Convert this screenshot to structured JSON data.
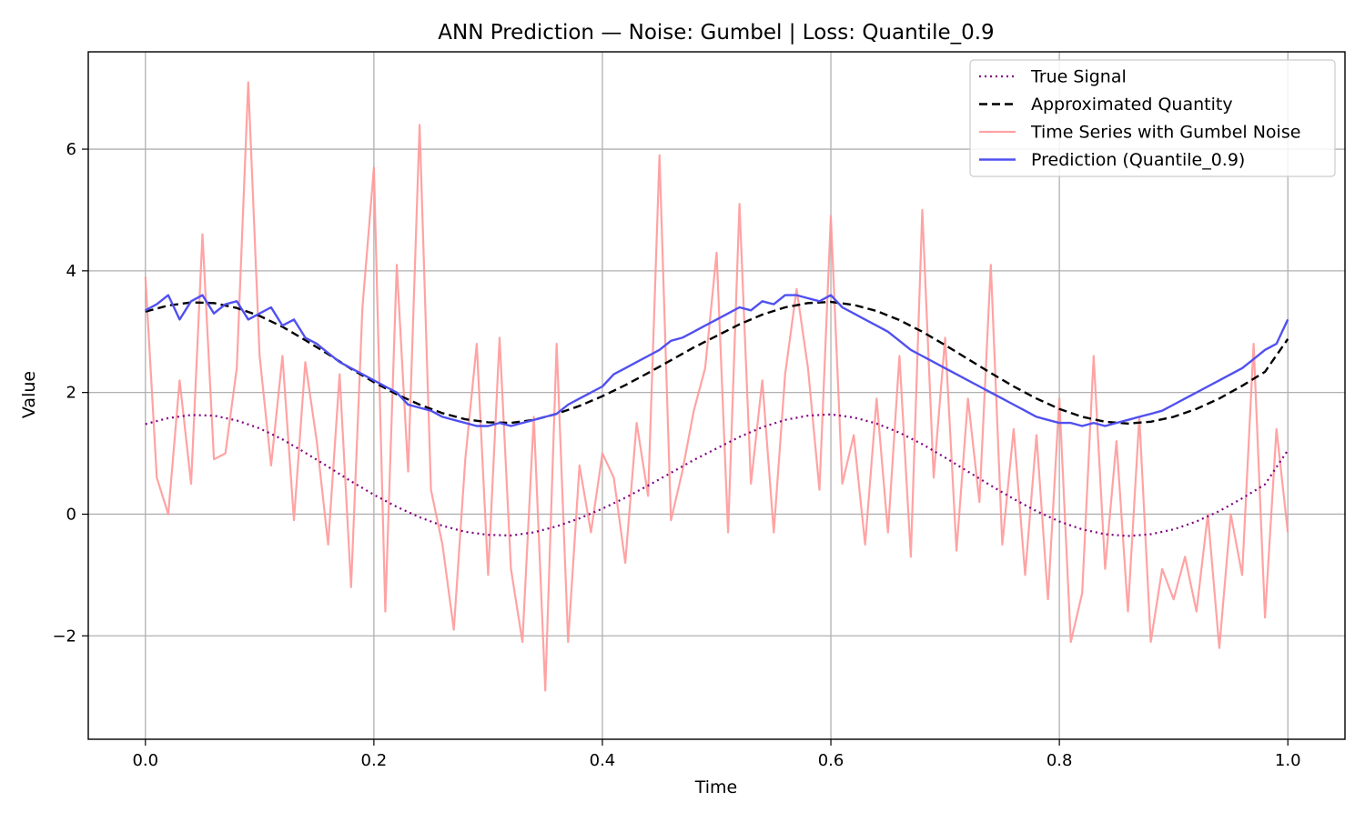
{
  "chart_data": {
    "type": "line",
    "title": "ANN Prediction — Noise: Gumbel | Loss: Quantile_0.9",
    "xlabel": "Time",
    "ylabel": "Value",
    "xlim": [
      -0.05,
      1.05
    ],
    "ylim": [
      -3.7,
      7.6
    ],
    "x_ticks": [
      0.0,
      0.2,
      0.4,
      0.6,
      0.8,
      1.0
    ],
    "x_tick_labels": [
      "0.0",
      "0.2",
      "0.4",
      "0.6",
      "0.8",
      "1.0"
    ],
    "y_ticks": [
      -2,
      0,
      2,
      4,
      6
    ],
    "y_tick_labels": [
      "−2",
      "0",
      "2",
      "4",
      "6"
    ],
    "grid": true,
    "legend_position": "top-right",
    "series": [
      {
        "name": "True Signal",
        "color": "#800080",
        "style": "dotted",
        "x": [
          0.0,
          0.02,
          0.04,
          0.06,
          0.08,
          0.1,
          0.12,
          0.14,
          0.16,
          0.18,
          0.2,
          0.22,
          0.24,
          0.26,
          0.28,
          0.3,
          0.32,
          0.34,
          0.36,
          0.38,
          0.4,
          0.42,
          0.44,
          0.46,
          0.48,
          0.5,
          0.52,
          0.54,
          0.56,
          0.58,
          0.6,
          0.62,
          0.64,
          0.66,
          0.68,
          0.7,
          0.72,
          0.74,
          0.76,
          0.78,
          0.8,
          0.82,
          0.84,
          0.86,
          0.88,
          0.9,
          0.92,
          0.94,
          0.96,
          0.98,
          1.0
        ],
        "y": [
          1.48,
          1.58,
          1.63,
          1.62,
          1.54,
          1.41,
          1.23,
          1.01,
          0.78,
          0.54,
          0.32,
          0.12,
          -0.05,
          -0.19,
          -0.29,
          -0.34,
          -0.35,
          -0.3,
          -0.2,
          -0.07,
          0.09,
          0.27,
          0.47,
          0.68,
          0.89,
          1.08,
          1.27,
          1.43,
          1.55,
          1.62,
          1.64,
          1.59,
          1.49,
          1.34,
          1.15,
          0.93,
          0.7,
          0.47,
          0.25,
          0.05,
          -0.12,
          -0.25,
          -0.33,
          -0.36,
          -0.33,
          -0.25,
          -0.12,
          0.05,
          0.26,
          0.49,
          1.05
        ]
      },
      {
        "name": "Approximated Quantity",
        "color": "#000000",
        "style": "dashed",
        "x": [
          0.0,
          0.02,
          0.04,
          0.06,
          0.08,
          0.1,
          0.12,
          0.14,
          0.16,
          0.18,
          0.2,
          0.22,
          0.24,
          0.26,
          0.28,
          0.3,
          0.32,
          0.34,
          0.36,
          0.38,
          0.4,
          0.42,
          0.44,
          0.46,
          0.48,
          0.5,
          0.52,
          0.54,
          0.56,
          0.58,
          0.6,
          0.62,
          0.64,
          0.66,
          0.68,
          0.7,
          0.72,
          0.74,
          0.76,
          0.78,
          0.8,
          0.82,
          0.84,
          0.86,
          0.88,
          0.9,
          0.92,
          0.94,
          0.96,
          0.98,
          1.0
        ],
        "y": [
          3.33,
          3.43,
          3.48,
          3.47,
          3.39,
          3.26,
          3.08,
          2.86,
          2.63,
          2.39,
          2.17,
          1.97,
          1.8,
          1.66,
          1.56,
          1.51,
          1.5,
          1.55,
          1.65,
          1.78,
          1.94,
          2.12,
          2.32,
          2.53,
          2.74,
          2.93,
          3.12,
          3.28,
          3.4,
          3.47,
          3.49,
          3.44,
          3.34,
          3.19,
          3.0,
          2.78,
          2.55,
          2.32,
          2.1,
          1.9,
          1.73,
          1.6,
          1.52,
          1.49,
          1.52,
          1.6,
          1.73,
          1.9,
          2.11,
          2.34,
          2.88
        ]
      },
      {
        "name": "Time Series with Gumbel Noise",
        "color": "#ff9999",
        "style": "solid",
        "x": [
          0.0,
          0.01,
          0.02,
          0.03,
          0.04,
          0.05,
          0.06,
          0.07,
          0.08,
          0.09,
          0.1,
          0.11,
          0.12,
          0.13,
          0.14,
          0.15,
          0.16,
          0.17,
          0.18,
          0.19,
          0.2,
          0.21,
          0.22,
          0.23,
          0.24,
          0.25,
          0.26,
          0.27,
          0.28,
          0.29,
          0.3,
          0.31,
          0.32,
          0.33,
          0.34,
          0.35,
          0.36,
          0.37,
          0.38,
          0.39,
          0.4,
          0.41,
          0.42,
          0.43,
          0.44,
          0.45,
          0.46,
          0.47,
          0.48,
          0.49,
          0.5,
          0.51,
          0.52,
          0.53,
          0.54,
          0.55,
          0.56,
          0.57,
          0.58,
          0.59,
          0.6,
          0.61,
          0.62,
          0.63,
          0.64,
          0.65,
          0.66,
          0.67,
          0.68,
          0.69,
          0.7,
          0.71,
          0.72,
          0.73,
          0.74,
          0.75,
          0.76,
          0.77,
          0.78,
          0.79,
          0.8,
          0.81,
          0.82,
          0.83,
          0.84,
          0.85,
          0.86,
          0.87,
          0.88,
          0.89,
          0.9,
          0.91,
          0.92,
          0.93,
          0.94,
          0.95,
          0.96,
          0.97,
          0.98,
          0.99,
          1.0
        ],
        "y": [
          3.9,
          0.6,
          0.0,
          2.2,
          0.5,
          4.6,
          0.9,
          1.0,
          2.4,
          7.1,
          2.6,
          0.8,
          2.6,
          -0.1,
          2.5,
          1.2,
          -0.5,
          2.3,
          -1.2,
          3.4,
          5.7,
          -1.6,
          4.1,
          0.7,
          6.4,
          0.4,
          -0.5,
          -1.9,
          0.9,
          2.8,
          -1.0,
          2.9,
          -0.9,
          -2.1,
          1.6,
          -2.9,
          2.8,
          -2.1,
          0.8,
          -0.3,
          1.0,
          0.6,
          -0.8,
          1.5,
          0.3,
          5.9,
          -0.1,
          0.7,
          1.7,
          2.4,
          4.3,
          -0.3,
          5.1,
          0.5,
          2.2,
          -0.3,
          2.3,
          3.7,
          2.4,
          0.4,
          4.9,
          0.5,
          1.3,
          -0.5,
          1.9,
          -0.3,
          2.6,
          -0.7,
          5.0,
          0.6,
          2.9,
          -0.6,
          1.9,
          0.2,
          4.1,
          -0.5,
          1.4,
          -1.0,
          1.3,
          -1.4,
          1.9,
          -2.1,
          -1.3,
          2.6,
          -0.9,
          1.2,
          -1.6,
          1.6,
          -2.1,
          -0.9,
          -1.4,
          -0.7,
          -1.6,
          0.0,
          -2.2,
          0.0,
          -1.0,
          2.8,
          -1.7,
          1.4,
          -0.3
        ]
      },
      {
        "name": "Prediction (Quantile_0.9)",
        "color": "#5050f0",
        "style": "solid",
        "x": [
          0.0,
          0.01,
          0.02,
          0.03,
          0.04,
          0.05,
          0.06,
          0.07,
          0.08,
          0.09,
          0.1,
          0.11,
          0.12,
          0.13,
          0.14,
          0.15,
          0.16,
          0.17,
          0.18,
          0.19,
          0.2,
          0.21,
          0.22,
          0.23,
          0.24,
          0.25,
          0.26,
          0.27,
          0.28,
          0.29,
          0.3,
          0.31,
          0.32,
          0.33,
          0.34,
          0.35,
          0.36,
          0.37,
          0.38,
          0.39,
          0.4,
          0.41,
          0.42,
          0.43,
          0.44,
          0.45,
          0.46,
          0.47,
          0.48,
          0.49,
          0.5,
          0.51,
          0.52,
          0.53,
          0.54,
          0.55,
          0.56,
          0.57,
          0.58,
          0.59,
          0.6,
          0.61,
          0.62,
          0.63,
          0.64,
          0.65,
          0.66,
          0.67,
          0.68,
          0.69,
          0.7,
          0.71,
          0.72,
          0.73,
          0.74,
          0.75,
          0.76,
          0.77,
          0.78,
          0.79,
          0.8,
          0.81,
          0.82,
          0.83,
          0.84,
          0.85,
          0.86,
          0.87,
          0.88,
          0.89,
          0.9,
          0.91,
          0.92,
          0.93,
          0.94,
          0.95,
          0.96,
          0.97,
          0.98,
          0.99,
          1.0
        ],
        "y": [
          3.35,
          3.45,
          3.6,
          3.2,
          3.5,
          3.6,
          3.3,
          3.45,
          3.5,
          3.2,
          3.3,
          3.4,
          3.1,
          3.2,
          2.9,
          2.8,
          2.65,
          2.5,
          2.4,
          2.3,
          2.2,
          2.1,
          2.0,
          1.8,
          1.75,
          1.7,
          1.6,
          1.55,
          1.5,
          1.45,
          1.45,
          1.5,
          1.45,
          1.5,
          1.55,
          1.6,
          1.65,
          1.8,
          1.9,
          2.0,
          2.1,
          2.3,
          2.4,
          2.5,
          2.6,
          2.7,
          2.85,
          2.9,
          3.0,
          3.1,
          3.2,
          3.3,
          3.4,
          3.35,
          3.5,
          3.45,
          3.6,
          3.6,
          3.55,
          3.5,
          3.6,
          3.4,
          3.3,
          3.2,
          3.1,
          3.0,
          2.85,
          2.7,
          2.6,
          2.5,
          2.4,
          2.3,
          2.2,
          2.1,
          2.0,
          1.9,
          1.8,
          1.7,
          1.6,
          1.55,
          1.5,
          1.5,
          1.45,
          1.5,
          1.45,
          1.5,
          1.55,
          1.6,
          1.65,
          1.7,
          1.8,
          1.9,
          2.0,
          2.1,
          2.2,
          2.3,
          2.4,
          2.55,
          2.7,
          2.8,
          3.2
        ]
      }
    ]
  }
}
